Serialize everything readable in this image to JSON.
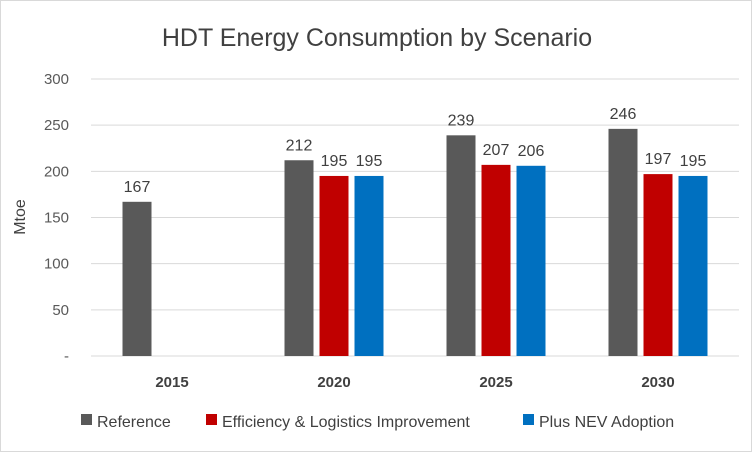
{
  "chart_data": {
    "type": "bar",
    "title": "HDT Energy Consumption by Scenario",
    "xlabel": "",
    "ylabel": "Mtoe",
    "ylim": [
      0,
      300
    ],
    "yticks": [
      0,
      50,
      100,
      150,
      200,
      250,
      300
    ],
    "ytick_labels": [
      "-",
      "50",
      "100",
      "150",
      "200",
      "250",
      "300"
    ],
    "categories": [
      "2015",
      "2020",
      "2025",
      "2030"
    ],
    "grid": true,
    "legend_position": "bottom",
    "series": [
      {
        "name": "Reference",
        "color": "#595959",
        "values": [
          167,
          212,
          239,
          246
        ]
      },
      {
        "name": "Efficiency & Logistics Improvement",
        "color": "#c00000",
        "values": [
          null,
          195,
          207,
          197
        ]
      },
      {
        "name": "Plus NEV Adoption",
        "color": "#0070c0",
        "values": [
          null,
          195,
          206,
          195
        ]
      }
    ]
  }
}
